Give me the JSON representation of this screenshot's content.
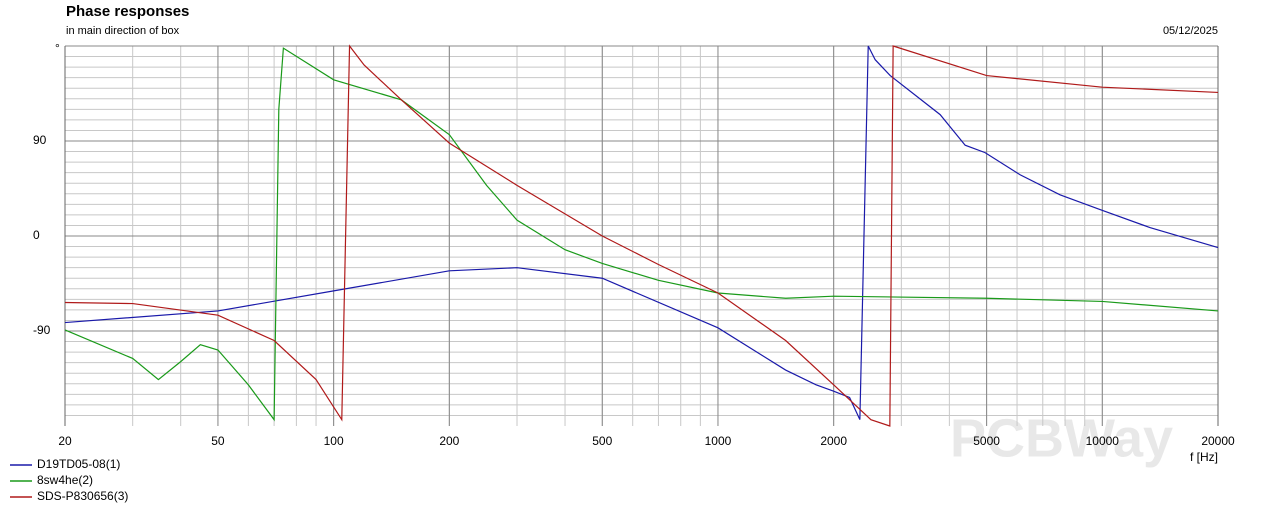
{
  "chart_data": {
    "type": "line",
    "title": "Phase responses",
    "subtitle": "in main direction of box",
    "date": "05/12/2025",
    "xlabel": "f [Hz]",
    "watermark": "PCBWay",
    "xscale": "log",
    "xlim": [
      20,
      20000
    ],
    "xticks": [
      20,
      50,
      100,
      200,
      500,
      1000,
      2000,
      5000,
      10000,
      20000
    ],
    "ylim": [
      -180,
      180
    ],
    "yticks": [
      -90,
      0,
      90,
      {
        "value": 180,
        "label": "°"
      }
    ],
    "grid": true,
    "legend": "bottom-left",
    "series": [
      {
        "name": "D19TD05-08(1)",
        "color": "#1a1aaa",
        "x": [
          20,
          50,
          100,
          200,
          300,
          500,
          1000,
          1500,
          1800,
          2000,
          2200,
          2340,
          2460,
          2565,
          2806,
          3785,
          4397,
          4954,
          6110,
          7762,
          9866,
          13300,
          20000
        ],
        "values": [
          -82,
          -71,
          -52,
          -33,
          -30,
          -40,
          -87,
          -127,
          -141,
          -147,
          -153,
          -174,
          180,
          167,
          152,
          115,
          86,
          79,
          58,
          39,
          25,
          8,
          -11
        ]
      },
      {
        "name": "8sw4he(2)",
        "color": "#1a9a1a",
        "x": [
          20,
          30,
          35,
          40,
          45,
          50,
          60,
          70,
          72,
          74,
          100,
          150,
          200,
          250,
          300,
          400,
          500,
          700,
          1000,
          1500,
          2000,
          5000,
          10000,
          20000
        ],
        "values": [
          -89,
          -116,
          -136,
          -119,
          -103,
          -108,
          -141,
          -174,
          120,
          178,
          148,
          129,
          96,
          48,
          15,
          -13,
          -26,
          -42,
          -54,
          -59,
          -57,
          -59,
          -62,
          -71
        ]
      },
      {
        "name": "SDS-P830656(3)",
        "color": "#b01a1a",
        "x": [
          20,
          30,
          50,
          70,
          90,
          105,
          110,
          120,
          150,
          200,
          300,
          500,
          700,
          1000,
          1500,
          2000,
          2500,
          2800,
          2856,
          5000,
          10000,
          20000
        ],
        "values": [
          -63,
          -64,
          -75,
          -99,
          -136,
          -174,
          180,
          162,
          129,
          88,
          48,
          0,
          -27,
          -54,
          -99,
          -141,
          -174,
          -180,
          180,
          152,
          141,
          136
        ]
      }
    ]
  }
}
